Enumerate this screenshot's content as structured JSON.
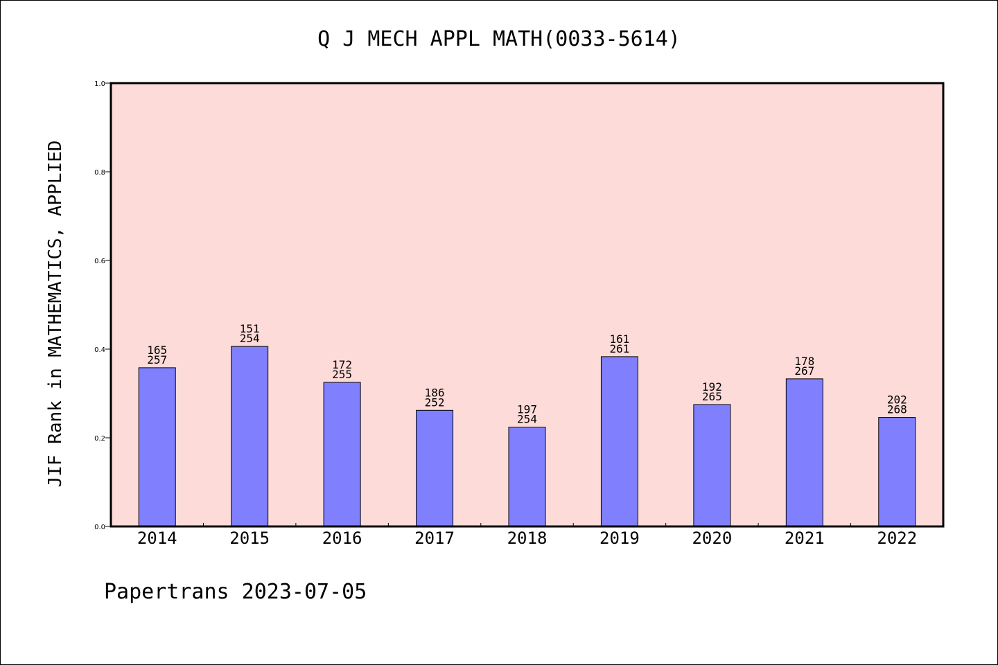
{
  "chart_data": {
    "type": "bar",
    "title": "Q J MECH APPL MATH(0033-5614)",
    "ylabel": "JIF Rank in MATHEMATICS, APPLIED",
    "xlabel": "",
    "ylim": [
      0,
      1.0
    ],
    "yticks": [
      "0.0",
      "0.2",
      "0.4",
      "0.6",
      "0.8",
      "1.0"
    ],
    "categories": [
      "2014",
      "2015",
      "2016",
      "2017",
      "2018",
      "2019",
      "2020",
      "2021",
      "2022"
    ],
    "values": [
      0.358,
      0.406,
      0.325,
      0.262,
      0.224,
      0.383,
      0.275,
      0.333,
      0.246
    ],
    "rank": [
      "165",
      "151",
      "172",
      "186",
      "197",
      "161",
      "192",
      "178",
      "202"
    ],
    "total": [
      "257",
      "254",
      "255",
      "252",
      "254",
      "261",
      "265",
      "267",
      "268"
    ],
    "plot_background": "#fddbd8",
    "bar_color": "#8080ff",
    "grid": false,
    "legend": "none"
  },
  "footer": {
    "text": "Papertrans 2023-07-05"
  }
}
